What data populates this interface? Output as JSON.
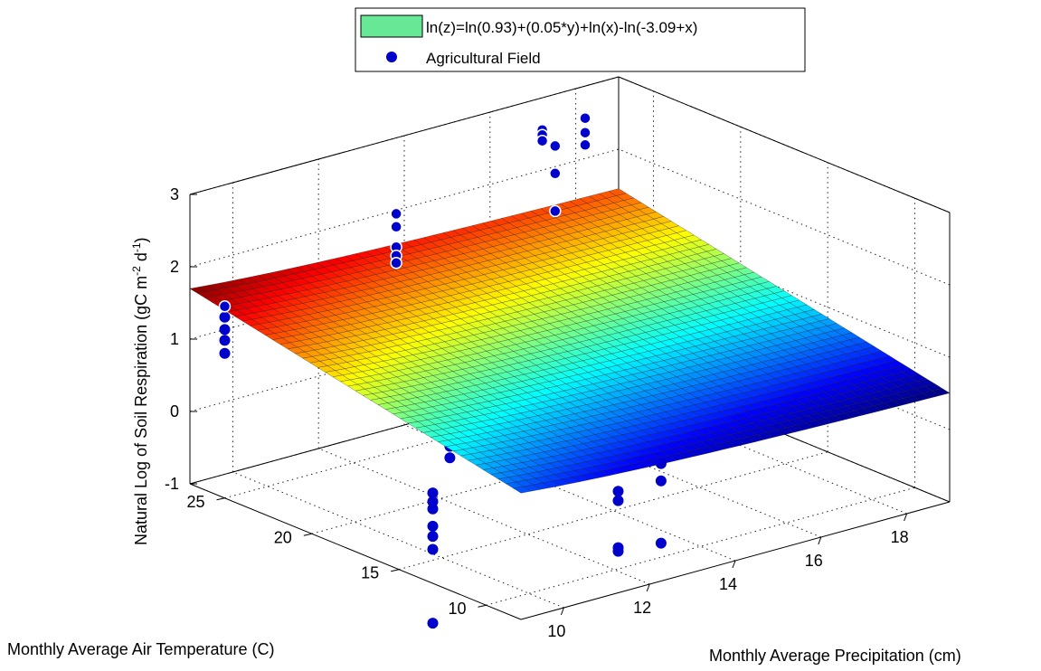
{
  "chart_data": {
    "type": "surface3d",
    "surface_equation": "ln(z)=ln(0.93)+(0.05*y)+ln(x)-ln(-3.09+x)",
    "surface_params": {
      "a": 0.93,
      "b": 0.05,
      "c": -3.09
    },
    "xlabel": "Monthly Average Precipitation (cm)",
    "ylabel": "Monthly Average Air Temperature (C)",
    "zlabel": "Natural Log of Soil Respiration (gC m-2 d-1)",
    "zlabel_parts": {
      "prefix": "Natural Log of Soil Respiration (gC m",
      "sup1": "-2",
      "mid": " d",
      "sup2": "-1",
      "suffix": ")"
    },
    "xlim": [
      9,
      19
    ],
    "ylim": [
      8,
      27
    ],
    "zlim": [
      -1,
      3
    ],
    "xticks": [
      "10",
      "12",
      "14",
      "16",
      "18"
    ],
    "yticks": [
      "10",
      "15",
      "20",
      "25"
    ],
    "zticks": [
      "-1",
      "0",
      "1",
      "2",
      "3"
    ],
    "grid": true,
    "colormap": "jet",
    "legend": {
      "placement": "top-center",
      "entries": [
        {
          "label": "ln(z)=ln(0.93)+(0.05*y)+ln(x)-ln(-3.09+x)",
          "kind": "surface",
          "color": "#66e897"
        },
        {
          "label": "Agricultural Field",
          "kind": "marker",
          "color": "#0000cc"
        }
      ]
    },
    "points": {
      "name": "Agricultural Field",
      "color": "#0000cc",
      "values": [
        {
          "x": 10.6,
          "y": 17.0,
          "z": -0.4
        },
        {
          "x": 10.6,
          "y": 17.0,
          "z": -0.52
        },
        {
          "x": 10.6,
          "y": 17.0,
          "z": -0.62
        },
        {
          "x": 10.6,
          "y": 17.0,
          "z": -0.86
        },
        {
          "x": 10.6,
          "y": 17.0,
          "z": -1.0
        },
        {
          "x": 10.6,
          "y": 17.0,
          "z": -1.18
        },
        {
          "x": 10.6,
          "y": 17.0,
          "z": -2.2
        },
        {
          "x": 11.0,
          "y": 17.0,
          "z": 0.18
        },
        {
          "x": 11.0,
          "y": 17.0,
          "z": 0.02
        },
        {
          "x": 9.0,
          "y": 25.0,
          "z": 1.65
        },
        {
          "x": 9.0,
          "y": 25.0,
          "z": 1.5
        },
        {
          "x": 9.0,
          "y": 25.0,
          "z": 1.33
        },
        {
          "x": 9.0,
          "y": 25.0,
          "z": 1.18
        },
        {
          "x": 9.0,
          "y": 25.0,
          "z": 1.0
        },
        {
          "x": 13.0,
          "y": 25.0,
          "z": 2.28
        },
        {
          "x": 13.0,
          "y": 25.0,
          "z": 2.1
        },
        {
          "x": 13.0,
          "y": 25.0,
          "z": 1.82
        },
        {
          "x": 13.0,
          "y": 25.0,
          "z": 1.7
        },
        {
          "x": 13.0,
          "y": 25.0,
          "z": 1.6
        },
        {
          "x": 16.0,
          "y": 24.0,
          "z": 3.05
        },
        {
          "x": 16.0,
          "y": 24.0,
          "z": 2.98
        },
        {
          "x": 16.0,
          "y": 24.0,
          "z": 2.9
        },
        {
          "x": 16.3,
          "y": 24.0,
          "z": 2.78
        },
        {
          "x": 16.3,
          "y": 24.0,
          "z": 2.4
        },
        {
          "x": 16.3,
          "y": 24.0,
          "z": 1.88
        },
        {
          "x": 17.0,
          "y": 24.0,
          "z": 3.05
        },
        {
          "x": 17.0,
          "y": 24.0,
          "z": 2.85
        },
        {
          "x": 17.0,
          "y": 24.0,
          "z": 2.68
        },
        {
          "x": 13.3,
          "y": 13.0,
          "z": -0.42
        },
        {
          "x": 13.3,
          "y": 13.0,
          "z": -0.55
        },
        {
          "x": 13.3,
          "y": 13.0,
          "z": -1.2
        },
        {
          "x": 13.3,
          "y": 13.0,
          "z": -1.25
        },
        {
          "x": 14.3,
          "y": 13.0,
          "z": -0.2
        },
        {
          "x": 14.3,
          "y": 13.0,
          "z": -0.44
        },
        {
          "x": 14.3,
          "y": 13.0,
          "z": -1.3
        }
      ]
    }
  }
}
